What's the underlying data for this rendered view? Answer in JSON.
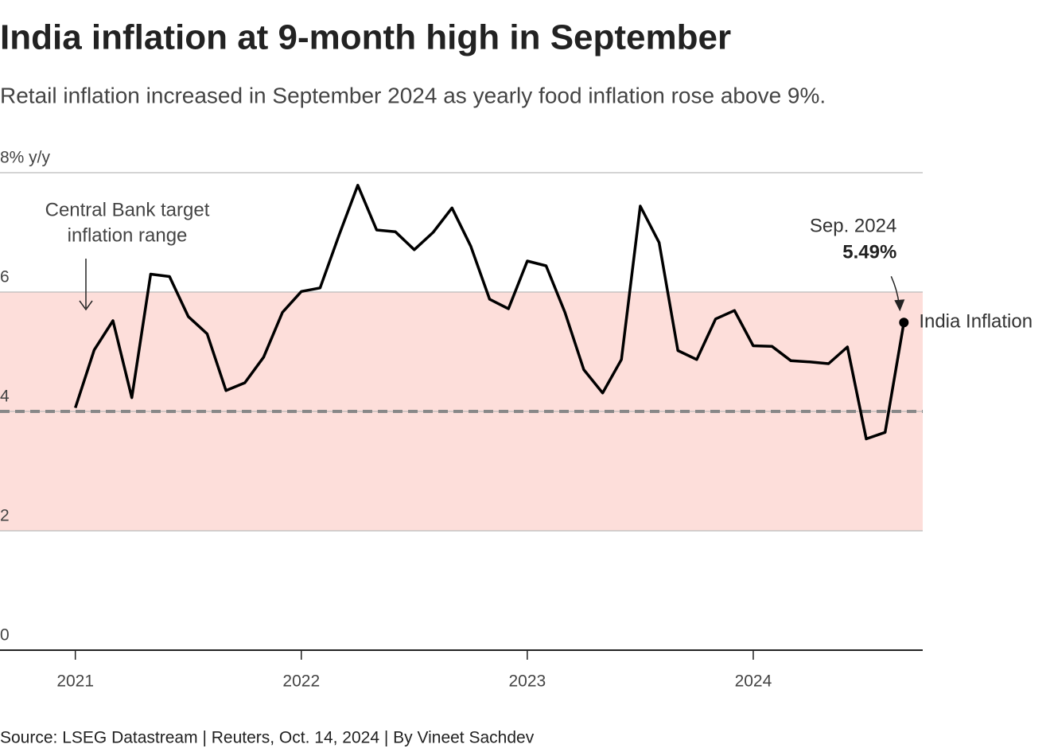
{
  "chart_data": {
    "type": "line",
    "title": "India inflation at 9-month high in September",
    "subtitle": "Retail inflation increased in September 2024 as yearly food inflation rose above 9%.",
    "source": "Source: LSEG Datastream | Reuters, Oct. 14, 2024 | By Vineet Sachdev",
    "x": [
      "2021-01",
      "2021-02",
      "2021-03",
      "2021-04",
      "2021-05",
      "2021-06",
      "2021-07",
      "2021-08",
      "2021-09",
      "2021-10",
      "2021-11",
      "2021-12",
      "2022-01",
      "2022-02",
      "2022-03",
      "2022-04",
      "2022-05",
      "2022-06",
      "2022-07",
      "2022-08",
      "2022-09",
      "2022-10",
      "2022-11",
      "2022-12",
      "2023-01",
      "2023-02",
      "2023-03",
      "2023-04",
      "2023-05",
      "2023-06",
      "2023-07",
      "2023-08",
      "2023-09",
      "2023-10",
      "2023-11",
      "2023-12",
      "2024-01",
      "2024-02",
      "2024-03",
      "2024-04",
      "2024-05",
      "2024-06",
      "2024-07",
      "2024-08",
      "2024-09"
    ],
    "series": [
      {
        "name": "India Inflation",
        "color": "#000000",
        "values": [
          4.06,
          5.03,
          5.52,
          4.23,
          6.3,
          6.26,
          5.59,
          5.3,
          4.35,
          4.48,
          4.91,
          5.66,
          6.01,
          6.07,
          6.95,
          7.79,
          7.04,
          7.01,
          6.71,
          7.0,
          7.41,
          6.77,
          5.88,
          5.72,
          6.52,
          6.44,
          5.66,
          4.7,
          4.31,
          4.87,
          7.44,
          6.83,
          5.02,
          4.87,
          5.55,
          5.69,
          5.1,
          5.09,
          4.85,
          4.83,
          4.8,
          5.08,
          3.54,
          3.65,
          5.49
        ]
      }
    ],
    "xlim": [
      "2020-09",
      "2024-10"
    ],
    "xticks": [
      2021,
      2022,
      2023,
      2024
    ],
    "ylim": [
      0,
      8
    ],
    "yticks": [
      0,
      2,
      4,
      6,
      {
        "value": 8,
        "label": "8% y/y"
      }
    ],
    "grid": true,
    "target_range": [
      2,
      6
    ],
    "target_line": 4,
    "range_color": "#fddeda",
    "range_annotation": [
      "Central Bank target",
      "inflation range"
    ],
    "callout": {
      "date": "Sep. 2024",
      "value": "5.49%"
    }
  }
}
